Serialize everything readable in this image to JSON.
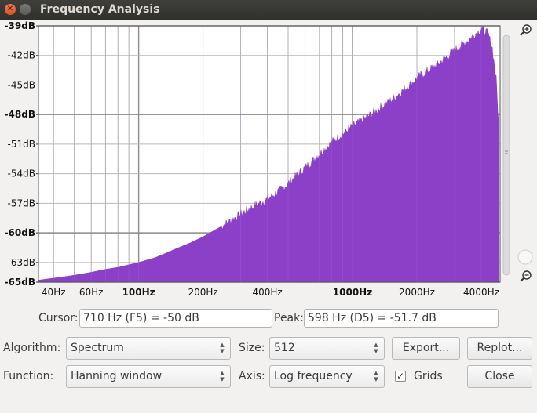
{
  "window": {
    "title": "Frequency Analysis"
  },
  "chart_data": {
    "type": "area",
    "x_scale": "log",
    "xlim": [
      34,
      4900
    ],
    "ylim": [
      -65,
      -39
    ],
    "x_tick_labels": [
      {
        "hz": 40,
        "label": "40Hz",
        "bold": false
      },
      {
        "hz": 60,
        "label": "60Hz",
        "bold": false
      },
      {
        "hz": 100,
        "label": "100Hz",
        "bold": true
      },
      {
        "hz": 200,
        "label": "200Hz",
        "bold": false
      },
      {
        "hz": 400,
        "label": "400Hz",
        "bold": false
      },
      {
        "hz": 1000,
        "label": "1000Hz",
        "bold": true
      },
      {
        "hz": 2000,
        "label": "2000Hz",
        "bold": false
      },
      {
        "hz": 4000,
        "label": "4000Hz",
        "bold": false
      }
    ],
    "y_tick_labels": [
      {
        "db": -39,
        "label": "-39dB",
        "bold": true
      },
      {
        "db": -42,
        "label": "-42dB",
        "bold": false
      },
      {
        "db": -45,
        "label": "-45dB",
        "bold": false
      },
      {
        "db": -48,
        "label": "-48dB",
        "bold": true
      },
      {
        "db": -51,
        "label": "-51dB",
        "bold": false
      },
      {
        "db": -54,
        "label": "-54dB",
        "bold": false
      },
      {
        "db": -57,
        "label": "-57dB",
        "bold": false
      },
      {
        "db": -60,
        "label": "-60dB",
        "bold": true
      },
      {
        "db": -63,
        "label": "-63dB",
        "bold": false
      },
      {
        "db": -65,
        "label": "-65dB",
        "bold": true
      }
    ],
    "grid": true,
    "series": [
      {
        "color": "#8c3fc7",
        "x": [
          34,
          40,
          50,
          60,
          70,
          80,
          100,
          120,
          150,
          175,
          200,
          250,
          300,
          350,
          400,
          450,
          500,
          600,
          700,
          800,
          1000,
          1200,
          1500,
          1800,
          2000,
          2500,
          3000,
          3500,
          4000,
          4300,
          4500,
          4700,
          4850,
          4900
        ],
        "y": [
          -64.8,
          -64.6,
          -64.3,
          -64.0,
          -63.7,
          -63.5,
          -63.0,
          -62.5,
          -61.6,
          -61.0,
          -60.4,
          -59.2,
          -58.1,
          -57.2,
          -56.6,
          -55.8,
          -55.0,
          -53.4,
          -52.0,
          -50.8,
          -49.2,
          -48.1,
          -46.6,
          -45.2,
          -44.3,
          -42.9,
          -41.5,
          -40.4,
          -39.3,
          -39.8,
          -41.2,
          -44.5,
          -50.0,
          -65.0
        ]
      }
    ]
  },
  "zoom": {
    "in_icon": "zoom-in-icon",
    "out_icon": "zoom-out-icon"
  },
  "cursor": {
    "label": "Cursor:",
    "value": "710 Hz (F5) = -50 dB"
  },
  "peak": {
    "label": "Peak:",
    "value": "598 Hz (D5) = -51.7 dB"
  },
  "algorithm": {
    "label": "Algorithm:",
    "value": "Spectrum"
  },
  "size": {
    "label": "Size:",
    "value": "512"
  },
  "function": {
    "label": "Function:",
    "value": "Hanning window"
  },
  "axis": {
    "label": "Axis:",
    "value": "Log frequency"
  },
  "grids": {
    "label": "Grids",
    "checked": true
  },
  "buttons": {
    "export": "Export...",
    "replot": "Replot...",
    "close": "Close"
  }
}
